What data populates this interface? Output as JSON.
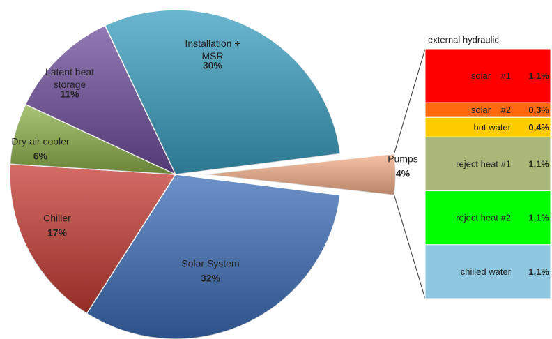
{
  "chart_data": {
    "type": "pie",
    "categories": [
      "Pumps",
      "Solar System",
      "Chiller",
      "Dry air cooler",
      "Latent heat storage",
      "Installation + MSR"
    ],
    "values": [
      4,
      32,
      17,
      6,
      11,
      30
    ],
    "value_labels": [
      "4%",
      "32%",
      "17%",
      "6%",
      "11%",
      "30%"
    ],
    "colors": [
      "#f4b08a",
      "#3b6db6",
      "#c43c33",
      "#8db04a",
      "#6d4d9a",
      "#3a9fc0"
    ],
    "breakdown": {
      "title": "external hydraulic",
      "categories": [
        "solar    #1",
        "solar    #2",
        "hot water",
        "reject heat #1",
        "reject heat #2",
        "chilled water"
      ],
      "values": [
        1.1,
        0.3,
        0.4,
        1.1,
        1.1,
        1.1
      ],
      "value_labels": [
        "1,1%",
        "0,3%",
        "0,4%",
        "1,1%",
        "1,1%",
        "1,1%"
      ],
      "colors": [
        "#ff0000",
        "#ff6a10",
        "#ffcc00",
        "#a9b879",
        "#00ff00",
        "#8fc6e0"
      ]
    }
  }
}
